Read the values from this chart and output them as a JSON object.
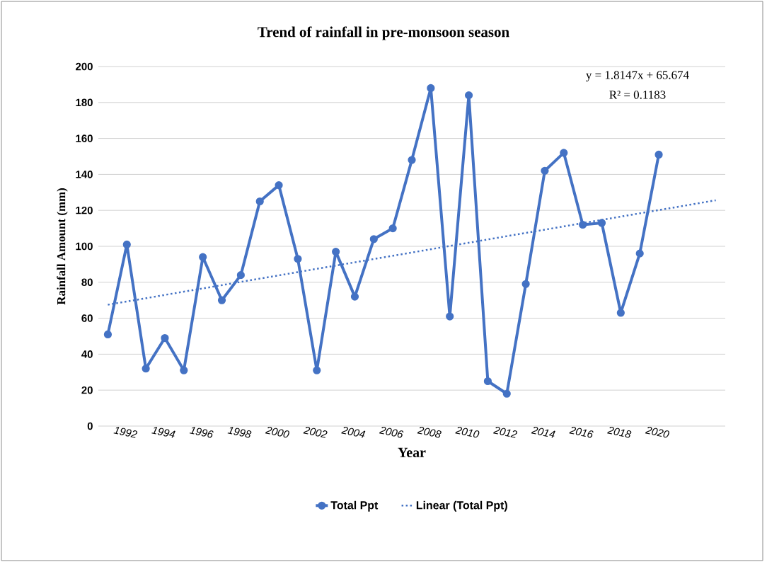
{
  "chart_data": {
    "type": "line",
    "title": "Trend of rainfall in pre-monsoon season",
    "xlabel": "Year",
    "ylabel": "Rainfall Amount  (mm)",
    "x": [
      1991,
      1992,
      1993,
      1994,
      1995,
      1996,
      1997,
      1998,
      1999,
      2000,
      2001,
      2002,
      2003,
      2004,
      2005,
      2006,
      2007,
      2008,
      2009,
      2010,
      2011,
      2012,
      2013,
      2014,
      2015,
      2016,
      2017,
      2018,
      2019,
      2020
    ],
    "series": [
      {
        "name": "Total Ppt",
        "color": "#4472c4",
        "marker": "circle",
        "line_style": "solid",
        "values": [
          51,
          101,
          32,
          49,
          31,
          94,
          70,
          84,
          125,
          134,
          93,
          31,
          97,
          72,
          104,
          110,
          148,
          188,
          61,
          184,
          25,
          18,
          79,
          142,
          152,
          112,
          113,
          63,
          96,
          151
        ]
      },
      {
        "name": "Linear (Total Ppt)",
        "type": "line",
        "color": "#4472c4",
        "marker": "none",
        "line_style": "dotted",
        "x": [
          1991,
          2023
        ],
        "values": [
          67.5,
          125.6
        ]
      }
    ],
    "xlim": [
      1990.5,
      2023.5
    ],
    "xticks": [
      1992,
      1994,
      1996,
      1998,
      2000,
      2002,
      2004,
      2006,
      2008,
      2010,
      2012,
      2014,
      2016,
      2018,
      2020
    ],
    "ylim": [
      0,
      200
    ],
    "yticks": [
      0,
      20,
      40,
      60,
      80,
      100,
      120,
      140,
      160,
      180,
      200
    ],
    "grid": "y",
    "legend": "bottom",
    "annotations": [
      "y = 1.8147x  + 65.674",
      "R² = 0.1183"
    ]
  }
}
